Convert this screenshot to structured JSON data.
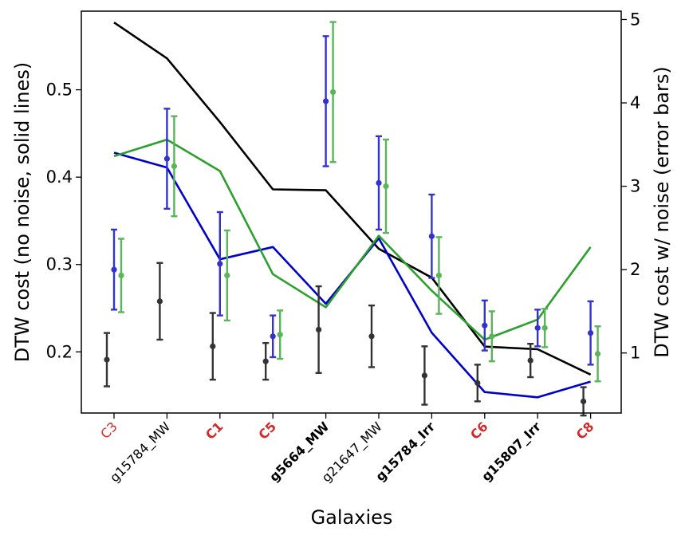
{
  "chart_data": {
    "type": "line",
    "xlabel": "Galaxies",
    "ylabel_left": "DTW cost (no noise, solid lines)",
    "ylabel_right": "DTW cost w/ noise (error bars)",
    "categories": [
      {
        "label": "C3",
        "color": "#d62728",
        "bold": false
      },
      {
        "label": "g15784_MW",
        "color": "#000000",
        "bold": false
      },
      {
        "label": "C1",
        "color": "#d62728",
        "bold": true
      },
      {
        "label": "C5",
        "color": "#d62728",
        "bold": true
      },
      {
        "label": "g5664_MW",
        "color": "#000000",
        "bold": true
      },
      {
        "label": "g21647_MW",
        "color": "#000000",
        "bold": false
      },
      {
        "label": "g15784_Irr",
        "color": "#000000",
        "bold": true
      },
      {
        "label": "C6",
        "color": "#d62728",
        "bold": true
      },
      {
        "label": "g15807_Irr",
        "color": "#000000",
        "bold": true
      },
      {
        "label": "C8",
        "color": "#d62728",
        "bold": true
      }
    ],
    "y_left": {
      "range": [
        0.13,
        0.59
      ],
      "ticks": [
        0.2,
        0.3,
        0.4,
        0.5
      ],
      "tick_labels": [
        "0.2",
        "0.3",
        "0.4",
        "0.5"
      ]
    },
    "y_right": {
      "range": [
        0.28,
        5.1
      ],
      "ticks": [
        1,
        2,
        3,
        4,
        5
      ],
      "tick_labels": [
        "1",
        "2",
        "3",
        "4",
        "5"
      ]
    },
    "lines": [
      {
        "name": "black",
        "color": "#000000",
        "values": [
          0.577,
          0.536,
          0.463,
          0.386,
          0.385,
          0.318,
          0.285,
          0.206,
          0.203,
          0.174
        ]
      },
      {
        "name": "blue",
        "color": "#0000cc",
        "values": [
          0.428,
          0.411,
          0.306,
          0.32,
          0.255,
          0.33,
          0.222,
          0.154,
          0.148,
          0.166
        ]
      },
      {
        "name": "green",
        "color": "#2ca02c",
        "values": [
          0.424,
          0.443,
          0.407,
          0.289,
          0.251,
          0.333,
          0.27,
          0.214,
          0.237,
          0.32
        ]
      }
    ],
    "error_bars": [
      {
        "name": "black",
        "color": "#333333",
        "offset": -1,
        "values": [
          0.92,
          1.62,
          1.08,
          0.9,
          1.28,
          1.2,
          0.73,
          0.64,
          0.91,
          0.42
        ],
        "err": [
          0.32,
          0.46,
          0.4,
          0.22,
          0.52,
          0.37,
          0.35,
          0.22,
          0.2,
          0.17
        ]
      },
      {
        "name": "blue",
        "color": "#3333cc",
        "offset": 0,
        "values": [
          2.0,
          3.33,
          2.07,
          1.2,
          4.02,
          3.04,
          2.4,
          1.33,
          1.3,
          1.24
        ],
        "err": [
          0.48,
          0.6,
          0.62,
          0.25,
          0.78,
          0.56,
          0.5,
          0.3,
          0.22,
          0.38
        ]
      },
      {
        "name": "green",
        "color": "#5ab55a",
        "offset": 1,
        "values": [
          1.93,
          3.24,
          1.93,
          1.22,
          4.13,
          3.0,
          1.93,
          1.2,
          1.3,
          0.99
        ],
        "err": [
          0.44,
          0.6,
          0.54,
          0.29,
          0.84,
          0.56,
          0.46,
          0.3,
          0.23,
          0.33
        ]
      }
    ]
  }
}
